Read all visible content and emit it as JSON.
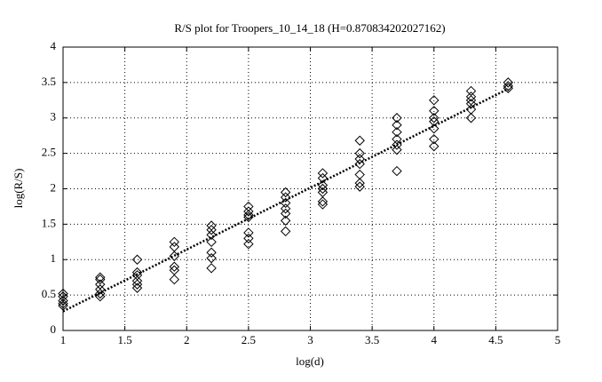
{
  "chart_data": {
    "type": "scatter",
    "title": "R/S plot for Troopers_10_14_18 (H=0.870834202027162)",
    "xlabel": "log(d)",
    "ylabel": "log(R/S)",
    "xlim": [
      1,
      5
    ],
    "xticks": [
      1,
      1.5,
      2,
      2.5,
      3,
      3.5,
      4,
      4.5,
      5
    ],
    "ylim": [
      0,
      4
    ],
    "yticks": [
      0,
      0.5,
      1,
      1.5,
      2,
      2.5,
      3,
      3.5,
      4
    ],
    "grid": true,
    "series": [
      {
        "color": "#000000",
        "marker": "diamond",
        "x": [
          1,
          1,
          1,
          1,
          1,
          1.3,
          1.3,
          1.3,
          1.3,
          1.3,
          1.3,
          1.6,
          1.6,
          1.6,
          1.6,
          1.6,
          1.6,
          1.9,
          1.9,
          1.9,
          1.9,
          1.9,
          1.9,
          2.2,
          2.2,
          2.2,
          2.2,
          2.2,
          2.2,
          2.2,
          2.5,
          2.5,
          2.5,
          2.5,
          2.5,
          2.5,
          2.5,
          2.8,
          2.8,
          2.8,
          2.8,
          2.8,
          2.8,
          2.8,
          3.1,
          3.1,
          3.1,
          3.1,
          3.1,
          3.1,
          3.1,
          3.4,
          3.4,
          3.4,
          3.4,
          3.4,
          3.4,
          3.4,
          3.7,
          3.7,
          3.7,
          3.7,
          3.7,
          3.7,
          3.7,
          4.0,
          4.0,
          4.0,
          4.0,
          4.0,
          4.0,
          4.0,
          4.3,
          4.3,
          4.3,
          4.3,
          4.3,
          4.3,
          4.6,
          4.6,
          4.6
        ],
        "values": [
          0.35,
          0.38,
          0.42,
          0.48,
          0.52,
          0.48,
          0.52,
          0.58,
          0.65,
          0.72,
          0.75,
          0.6,
          0.65,
          0.7,
          0.78,
          0.82,
          1.0,
          0.72,
          0.85,
          0.9,
          1.05,
          1.18,
          1.25,
          0.88,
          1.02,
          1.1,
          1.25,
          1.35,
          1.42,
          1.48,
          1.22,
          1.3,
          1.38,
          1.6,
          1.63,
          1.68,
          1.75,
          1.4,
          1.55,
          1.65,
          1.72,
          1.8,
          1.88,
          1.95,
          1.78,
          1.82,
          1.95,
          2.0,
          2.05,
          2.15,
          2.22,
          2.03,
          2.08,
          2.2,
          2.35,
          2.42,
          2.5,
          2.68,
          2.25,
          2.55,
          2.62,
          2.7,
          2.8,
          2.9,
          3.0,
          2.6,
          2.7,
          2.85,
          2.95,
          3.0,
          3.1,
          3.25,
          3.0,
          3.12,
          3.2,
          3.25,
          3.3,
          3.38,
          3.42,
          3.45,
          3.5
        ]
      }
    ],
    "fit": {
      "color": "#000000",
      "x": [
        1,
        4.6
      ],
      "values": [
        0.27,
        3.41
      ]
    }
  }
}
